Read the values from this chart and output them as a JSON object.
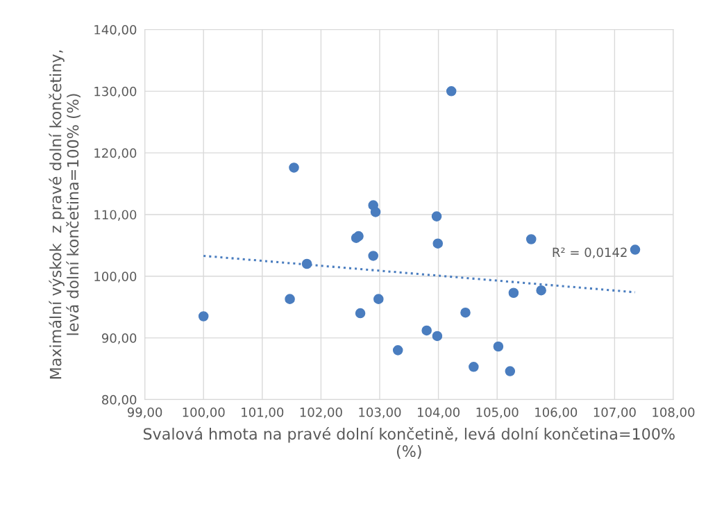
{
  "chart_data": {
    "type": "scatter",
    "xlabel": "Svalová hmota na pravé dolní končetině, levá dolní končetina=100%\n(%)",
    "ylabel": "Maximální výskok  z pravé dolní končetiny,\nlevá dolní končetina=100% (%)",
    "series": [
      {
        "color": "#4a7dbf",
        "marker": "circle",
        "x": [
          100.0,
          101.54,
          101.47,
          101.76,
          102.6,
          102.64,
          102.89,
          102.93,
          102.89,
          102.67,
          102.98,
          103.31,
          103.8,
          103.98,
          103.97,
          103.99,
          104.22,
          104.46,
          104.6,
          105.02,
          105.22,
          105.28,
          105.58,
          105.75,
          107.35
        ],
        "values": [
          93.5,
          117.6,
          96.3,
          102.0,
          106.2,
          106.5,
          111.5,
          110.4,
          103.3,
          94.0,
          96.3,
          88.0,
          91.2,
          90.3,
          109.7,
          105.3,
          130.0,
          94.1,
          85.3,
          88.6,
          84.6,
          97.3,
          106.0,
          97.7,
          104.3
        ]
      },
      {
        "type": "line",
        "color": "#4a7dbf",
        "line_style": "dotted",
        "marker": "none",
        "x": [
          100.0,
          107.35
        ],
        "values": [
          103.3,
          97.4
        ]
      }
    ],
    "annotations": [
      "R² = 0,0142"
    ],
    "xlim": [
      99,
      108
    ],
    "xticks": [
      {
        "value": 99,
        "label": "99,00"
      },
      {
        "value": 100,
        "label": "100,00"
      },
      {
        "value": 101,
        "label": "101,00"
      },
      {
        "value": 102,
        "label": "102,00"
      },
      {
        "value": 103,
        "label": "103,00"
      },
      {
        "value": 104,
        "label": "104,00"
      },
      {
        "value": 105,
        "label": "105,00"
      },
      {
        "value": 106,
        "label": "106,00"
      },
      {
        "value": 107,
        "label": "107,00"
      },
      {
        "value": 108,
        "label": "108,00"
      }
    ],
    "ylim": [
      80,
      140
    ],
    "yticks": [
      {
        "value": 80,
        "label": "80,00"
      },
      {
        "value": 90,
        "label": "90,00"
      },
      {
        "value": 100,
        "label": "100,00"
      },
      {
        "value": 110,
        "label": "110,00"
      },
      {
        "value": 120,
        "label": "120,00"
      },
      {
        "value": 130,
        "label": "130,00"
      },
      {
        "value": 140,
        "label": "140,00"
      }
    ],
    "grid": true,
    "legend": false
  }
}
